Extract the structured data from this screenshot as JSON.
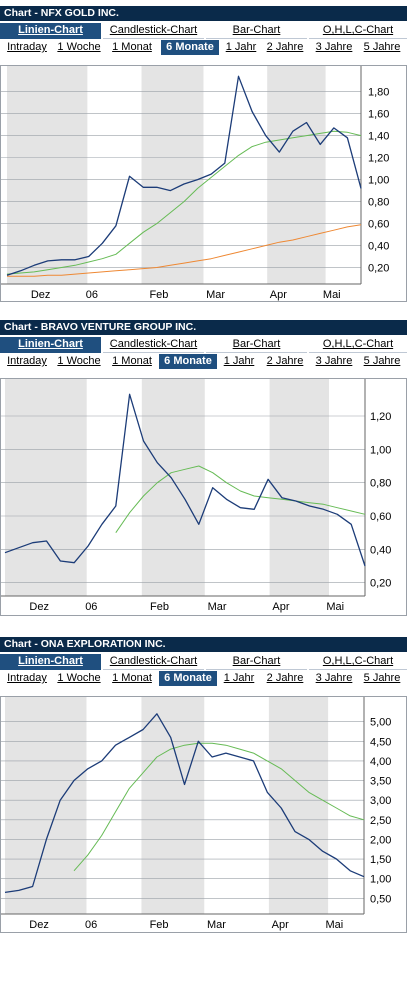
{
  "tabs": [
    "Linien-Chart",
    "Candlestick-Chart",
    "Bar-Chart",
    "O,H,L,C-Chart"
  ],
  "periods": [
    "Intraday",
    "1 Woche",
    "1 Monat",
    "6 Monate",
    "1 Jahr",
    "2 Jahre",
    "3 Jahre",
    "5 Jahre"
  ],
  "active_tab": 0,
  "active_period": 3,
  "colors": {
    "titlebar": "#0a2a4a",
    "active": "#1f4f7f",
    "price": "#1c3c78",
    "ma_fast": "#66bb55",
    "ma_slow": "#ee8833",
    "band": "#e4e4e4"
  },
  "charts": [
    {
      "title": "Chart - NFX GOLD INC.",
      "xlabels": [
        "Dez",
        "06",
        "Feb",
        "Mar",
        "Apr",
        "Mai"
      ],
      "ylabels": [
        "0,20",
        "0,40",
        "0,60",
        "0,80",
        "1,00",
        "1,20",
        "1,40",
        "1,60",
        "1,80"
      ]
    },
    {
      "title": "Chart - BRAVO VENTURE GROUP INC.",
      "xlabels": [
        "Dez",
        "06",
        "Feb",
        "Mar",
        "Apr",
        "Mai"
      ],
      "ylabels": [
        "0,20",
        "0,40",
        "0,60",
        "0,80",
        "1,00",
        "1,20"
      ]
    },
    {
      "title": "Chart - ONA EXPLORATION INC.",
      "xlabels": [
        "Dez",
        "06",
        "Feb",
        "Mar",
        "Apr",
        "Mai"
      ],
      "ylabels": [
        "0,50",
        "1,00",
        "1,50",
        "2,00",
        "2,50",
        "3,00",
        "3,50",
        "4,00",
        "4,50",
        "5,00"
      ]
    }
  ],
  "chart_data": [
    {
      "type": "line",
      "title": "Chart - NFX GOLD INC.",
      "xlabel": "",
      "ylabel": "",
      "x": [
        0,
        1,
        2,
        3,
        4,
        5,
        6,
        7,
        8,
        9,
        10,
        11,
        12,
        13,
        14,
        15,
        16,
        17,
        18,
        19,
        20,
        21,
        22,
        23,
        24,
        25,
        26
      ],
      "x_ticks": [
        "Dez",
        "06",
        "Feb",
        "Mar",
        "Apr",
        "Mai"
      ],
      "ylim": [
        0.05,
        1.97
      ],
      "grid": true,
      "series": [
        {
          "values": [
            0.13,
            0.17,
            0.22,
            0.26,
            0.27,
            0.27,
            0.3,
            0.42,
            0.58,
            1.03,
            0.93,
            0.93,
            0.9,
            0.96,
            1.0,
            1.05,
            1.15,
            1.94,
            1.62,
            1.4,
            1.25,
            1.44,
            1.52,
            1.32,
            1.47,
            1.38,
            0.92
          ]
        },
        {
          "values": [
            0.14,
            0.15,
            0.16,
            0.18,
            0.2,
            0.22,
            0.25,
            0.28,
            0.32,
            0.42,
            0.52,
            0.6,
            0.7,
            0.8,
            0.92,
            1.02,
            1.12,
            1.22,
            1.3,
            1.34,
            1.36,
            1.38,
            1.4,
            1.42,
            1.44,
            1.43,
            1.4
          ]
        },
        {
          "values": [
            0.12,
            0.12,
            0.12,
            0.13,
            0.13,
            0.14,
            0.15,
            0.16,
            0.17,
            0.18,
            0.19,
            0.2,
            0.22,
            0.24,
            0.26,
            0.28,
            0.31,
            0.34,
            0.37,
            0.4,
            0.43,
            0.45,
            0.48,
            0.51,
            0.54,
            0.57,
            0.59
          ]
        }
      ]
    },
    {
      "type": "line",
      "title": "Chart - BRAVO VENTURE GROUP INC.",
      "xlabel": "",
      "ylabel": "",
      "x": [
        0,
        1,
        2,
        3,
        4,
        5,
        6,
        7,
        8,
        9,
        10,
        11,
        12,
        13,
        14,
        15,
        16,
        17,
        18,
        19,
        20,
        21,
        22,
        23,
        24,
        25,
        26
      ],
      "x_ticks": [
        "Dez",
        "06",
        "Feb",
        "Mar",
        "Apr",
        "Mai"
      ],
      "ylim": [
        0.12,
        1.38
      ],
      "grid": true,
      "series": [
        {
          "values": [
            0.38,
            0.41,
            0.44,
            0.45,
            0.33,
            0.32,
            0.42,
            0.55,
            0.66,
            1.33,
            1.05,
            0.92,
            0.83,
            0.7,
            0.55,
            0.77,
            0.7,
            0.65,
            0.64,
            0.82,
            0.71,
            0.69,
            0.66,
            0.64,
            0.61,
            0.55,
            0.3
          ]
        },
        {
          "values": [
            null,
            null,
            null,
            null,
            null,
            null,
            null,
            null,
            0.5,
            0.62,
            0.72,
            0.8,
            0.86,
            0.88,
            0.9,
            0.86,
            0.8,
            0.75,
            0.72,
            0.71,
            0.7,
            0.69,
            0.68,
            0.67,
            0.65,
            0.63,
            0.61
          ]
        }
      ]
    },
    {
      "type": "line",
      "title": "Chart - ONA EXPLORATION INC.",
      "xlabel": "",
      "ylabel": "",
      "x": [
        0,
        1,
        2,
        3,
        4,
        5,
        6,
        7,
        8,
        9,
        10,
        11,
        12,
        13,
        14,
        15,
        16,
        17,
        18,
        19,
        20,
        21,
        22,
        23,
        24,
        25,
        26
      ],
      "x_ticks": [
        "Dez",
        "06",
        "Feb",
        "Mar",
        "Apr",
        "Mai"
      ],
      "ylim": [
        0.1,
        5.45
      ],
      "grid": true,
      "series": [
        {
          "values": [
            0.65,
            0.7,
            0.8,
            2.0,
            3.0,
            3.5,
            3.8,
            4.0,
            4.4,
            4.6,
            4.8,
            5.2,
            4.6,
            3.4,
            4.5,
            4.1,
            4.2,
            4.1,
            4.0,
            3.2,
            2.8,
            2.2,
            2.0,
            1.7,
            1.5,
            1.2,
            1.05
          ]
        },
        {
          "values": [
            null,
            null,
            null,
            null,
            null,
            1.2,
            1.6,
            2.1,
            2.7,
            3.3,
            3.7,
            4.1,
            4.3,
            4.4,
            4.45,
            4.45,
            4.4,
            4.3,
            4.2,
            4.0,
            3.8,
            3.5,
            3.2,
            3.0,
            2.8,
            2.6,
            2.5
          ]
        }
      ]
    }
  ]
}
